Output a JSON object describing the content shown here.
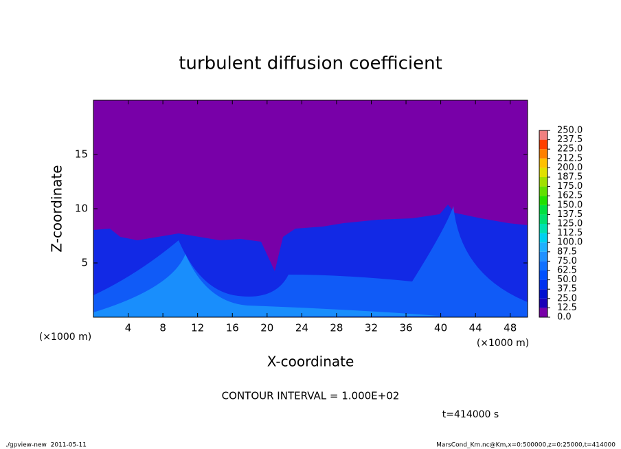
{
  "chart_data": {
    "type": "heatmap",
    "title": "turbulent diffusion coefficient",
    "xlabel": "X-coordinate",
    "ylabel": "Z-coordinate",
    "xunit": "(×1000 m)",
    "yunit": "(×1000 m)",
    "xlim": [
      0,
      50
    ],
    "xticks": [
      4,
      8,
      12,
      16,
      20,
      24,
      28,
      32,
      36,
      40,
      44,
      48
    ],
    "ylim": [
      0,
      20
    ],
    "yticks": [
      5,
      10,
      15
    ],
    "colorbar": {
      "levels": [
        {
          "value": 0,
          "label": "0.0"
        },
        {
          "value": 12.5,
          "label": "12.5"
        },
        {
          "value": 25,
          "label": "25.0"
        },
        {
          "value": 37.5,
          "label": "37.5"
        },
        {
          "value": 50,
          "label": "50.0"
        },
        {
          "value": 62.5,
          "label": "62.5"
        },
        {
          "value": 75,
          "label": "75.0"
        },
        {
          "value": 87.5,
          "label": "87.5"
        },
        {
          "value": 100,
          "label": "100.0"
        },
        {
          "value": 112.5,
          "label": "112.5"
        },
        {
          "value": 125,
          "label": "125.0"
        },
        {
          "value": 137.5,
          "label": "137.5"
        },
        {
          "value": 150,
          "label": "150.0"
        },
        {
          "value": 162.5,
          "label": "162.5"
        },
        {
          "value": 175,
          "label": "175.0"
        },
        {
          "value": 187.5,
          "label": "187.5"
        },
        {
          "value": 200,
          "label": "200.0"
        },
        {
          "value": 212.5,
          "label": "212.5"
        },
        {
          "value": 225,
          "label": "225.0"
        },
        {
          "value": 237.5,
          "label": "237.5"
        },
        {
          "value": 250,
          "label": "250.0"
        }
      ],
      "colors": [
        "#7800a8",
        "#1a00b8",
        "#0010d0",
        "#0030f0",
        "#0050ff",
        "#1070ff",
        "#2090ff",
        "#20b0ff",
        "#00d0f0",
        "#00e0b0",
        "#00e070",
        "#00e040",
        "#20e000",
        "#60e000",
        "#a0e000",
        "#e0e000",
        "#ffc000",
        "#ff8000",
        "#ff4000",
        "#f08080"
      ]
    },
    "contour_note": "CONTOUR INTERVAL = 1.000E+02",
    "time_note": "t=414000 s",
    "footer_left": "./gpview-new  2011-05-11",
    "footer_right": "MarsCond_Km.nc@Km,x=0:500000,z=0:25000,t=414000"
  }
}
